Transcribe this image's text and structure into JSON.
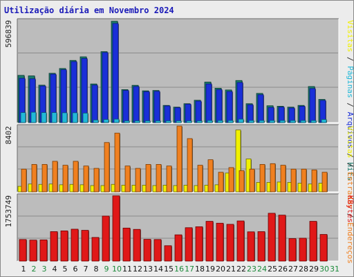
{
  "title": "Utilização diária em Novembro 2024",
  "colors": {
    "hits": "#1b7a6a",
    "files": "#1a2fd8",
    "pages": "#22b8d8",
    "visits": "#f0f000",
    "entries": "#f08020",
    "kbytes": "#e01818",
    "weekend": "#1b8a3a",
    "weekday": "#111111",
    "panel": "#bcbcbc",
    "title": "#1a1ab8"
  },
  "chart_data": [
    {
      "type": "bar",
      "panel": "top",
      "max_label": "596839",
      "ylim": [
        0,
        596839
      ],
      "right_labels": [
        "Hits",
        "Arquivos",
        "Páginas",
        "Visitas"
      ],
      "right_colors": [
        "#1b7a6a",
        "#1a2fd8",
        "#22b8d8",
        "#f0f000"
      ],
      "categories": [
        "1",
        "2",
        "3",
        "4",
        "5",
        "6",
        "7",
        "8",
        "9",
        "10",
        "11",
        "12",
        "13",
        "14",
        "15",
        "16",
        "17",
        "18",
        "19",
        "20",
        "21",
        "22",
        "23",
        "24",
        "25",
        "26",
        "27",
        "28",
        "29",
        "30"
      ],
      "series": [
        {
          "name": "Hits",
          "values": [
            275000,
            272000,
            218000,
            287000,
            315000,
            362000,
            383000,
            225000,
            413000,
            590000,
            192000,
            217000,
            185000,
            187000,
            100000,
            90000,
            110000,
            130000,
            236000,
            200000,
            190000,
            245000,
            110000,
            170000,
            98000,
            95000,
            90000,
            100000,
            210000,
            135000
          ]
        },
        {
          "name": "Arquivos",
          "values": [
            258000,
            255000,
            213000,
            282000,
            308000,
            355000,
            373000,
            218000,
            408000,
            577000,
            187000,
            210000,
            180000,
            182000,
            97000,
            87000,
            107000,
            125000,
            225000,
            192000,
            181000,
            233000,
            104000,
            162000,
            88000,
            90000,
            85000,
            95000,
            198000,
            129000
          ]
        },
        {
          "name": "Páginas",
          "values": [
            58000,
            60000,
            58000,
            58000,
            57000,
            57000,
            55000,
            15000,
            18000,
            20000,
            10000,
            10000,
            10000,
            10000,
            10000,
            10000,
            10000,
            10000,
            12000,
            12000,
            12000,
            20000,
            12000,
            12000,
            12000,
            12000,
            12000,
            12000,
            12000,
            18000
          ]
        }
      ]
    },
    {
      "type": "bar",
      "panel": "middle",
      "max_label": "8402",
      "ylim": [
        0,
        8402
      ],
      "right_labels": [
        "Visitas",
        "Entradas",
        "Endereços"
      ],
      "right_colors": [
        "#f0f000",
        "#f08020",
        "#f08020"
      ],
      "categories": [
        "1",
        "2",
        "3",
        "4",
        "5",
        "6",
        "7",
        "8",
        "9",
        "10",
        "11",
        "12",
        "13",
        "14",
        "15",
        "16",
        "17",
        "18",
        "19",
        "20",
        "21",
        "22",
        "23",
        "24",
        "25",
        "26",
        "27",
        "28",
        "29",
        "30"
      ],
      "series": [
        {
          "name": "Visitas",
          "values": [
            700,
            1000,
            950,
            1000,
            900,
            950,
            900,
            800,
            800,
            950,
            850,
            850,
            850,
            800,
            850,
            800,
            850,
            800,
            850,
            900,
            2400,
            7900,
            4200,
            1200,
            1200,
            1250,
            1200,
            1100,
            1000,
            1100
          ]
        },
        {
          "name": "Entradas",
          "values": [
            2900,
            3500,
            3500,
            3900,
            3400,
            3900,
            3300,
            3000,
            6300,
            7500,
            3300,
            3000,
            3500,
            3500,
            3300,
            8402,
            6800,
            3400,
            4100,
            2500,
            3100,
            2700,
            2900,
            3500,
            3600,
            3400,
            2900,
            2900,
            2800,
            2500
          ]
        }
      ]
    },
    {
      "type": "bar",
      "panel": "bottom",
      "max_label": "1753749",
      "ylim": [
        0,
        1753749
      ],
      "right_labels": [
        "KBytes"
      ],
      "right_colors": [
        "#e01818"
      ],
      "categories": [
        "1",
        "2",
        "3",
        "4",
        "5",
        "6",
        "7",
        "8",
        "9",
        "10",
        "11",
        "12",
        "13",
        "14",
        "15",
        "16",
        "17",
        "18",
        "19",
        "20",
        "21",
        "22",
        "23",
        "24",
        "25",
        "26",
        "27",
        "28",
        "29",
        "30"
      ],
      "series": [
        {
          "name": "KBytes",
          "values": [
            575000,
            560000,
            565000,
            785000,
            805000,
            850000,
            820000,
            630000,
            1200000,
            1740000,
            880000,
            845000,
            580000,
            575000,
            410000,
            700000,
            890000,
            915000,
            1060000,
            1010000,
            980000,
            1070000,
            780000,
            785000,
            1275000,
            1225000,
            600000,
            610000,
            1060000,
            710000
          ]
        }
      ]
    }
  ],
  "x_axis": {
    "labels": [
      "1",
      "2",
      "3",
      "4",
      "5",
      "6",
      "7",
      "8",
      "9",
      "10",
      "11",
      "12",
      "13",
      "14",
      "15",
      "16",
      "17",
      "18",
      "19",
      "20",
      "21",
      "22",
      "23",
      "24",
      "25",
      "26",
      "27",
      "28",
      "29",
      "30",
      "31"
    ],
    "weekend_days": [
      "2",
      "3",
      "9",
      "10",
      "16",
      "17",
      "23",
      "24",
      "30",
      "31"
    ]
  }
}
